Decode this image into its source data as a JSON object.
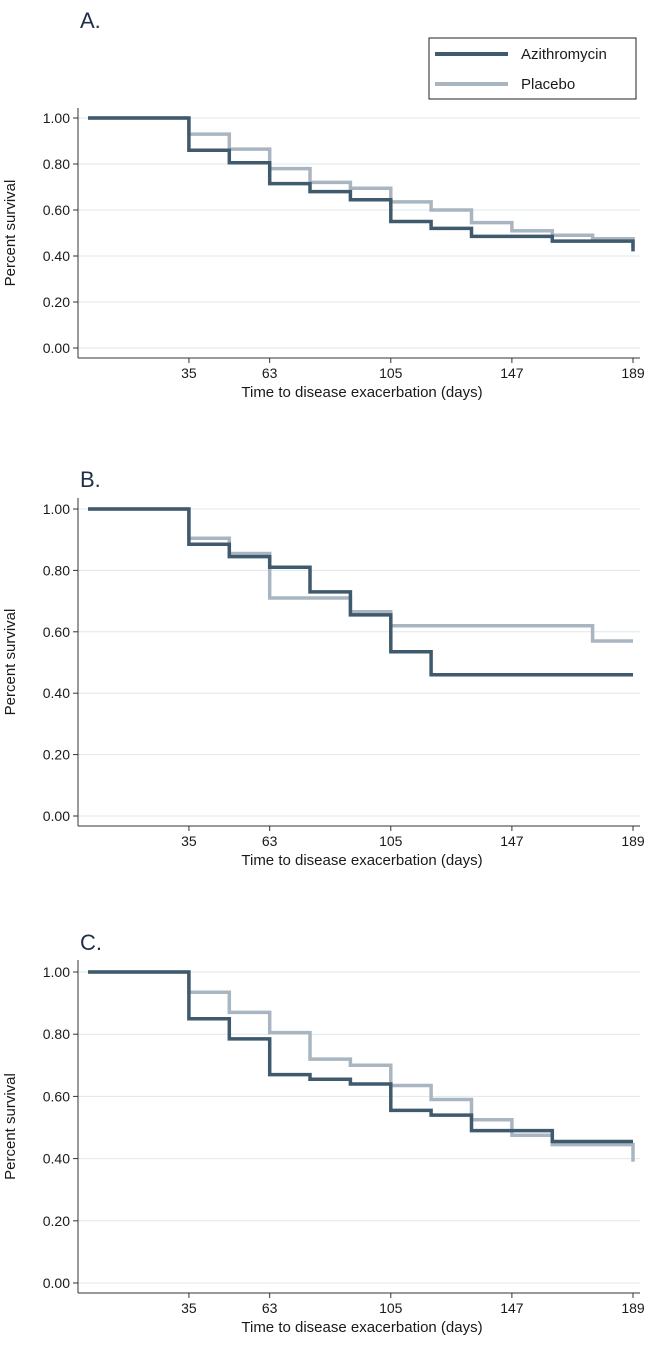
{
  "legend": {
    "entries": [
      {
        "label": "Azithromycin",
        "color": "#3f5a6d"
      },
      {
        "label": "Placebo",
        "color": "#a9b6c1"
      }
    ]
  },
  "colors": {
    "azithromycin": "#3f5a6d",
    "placebo": "#a9b6c1",
    "grid": "#dde7ea",
    "axis": "#333333"
  },
  "chart_data": [
    {
      "type": "line",
      "step": true,
      "panel_label": "A.",
      "xlabel": "Time to disease exacerbation (days)",
      "ylabel": "Percent survival",
      "x_ticks": [
        35,
        63,
        105,
        147,
        189
      ],
      "x_tick_labels": [
        "35",
        "63",
        "105",
        "147",
        "189"
      ],
      "y_ticks": [
        0,
        0.2,
        0.4,
        0.6,
        0.8,
        1.0
      ],
      "y_tick_labels": [
        "0.00",
        "0.20",
        "0.40",
        "0.60",
        "0.80",
        "1.00"
      ],
      "xlim": [
        0,
        189
      ],
      "ylim": [
        0,
        1
      ],
      "grid": true,
      "legend_position": "top-right",
      "series": [
        {
          "name": "Azithromycin",
          "x": [
            0,
            35,
            35,
            49,
            49,
            63,
            63,
            77,
            77,
            91,
            91,
            105,
            105,
            119,
            119,
            133,
            133,
            161,
            161,
            189,
            189
          ],
          "y": [
            1.0,
            1.0,
            0.86,
            0.86,
            0.805,
            0.805,
            0.715,
            0.715,
            0.68,
            0.68,
            0.645,
            0.645,
            0.55,
            0.55,
            0.52,
            0.52,
            0.485,
            0.485,
            0.465,
            0.465,
            0.42
          ]
        },
        {
          "name": "Placebo",
          "x": [
            0,
            35,
            35,
            49,
            49,
            63,
            63,
            77,
            77,
            91,
            91,
            105,
            105,
            119,
            119,
            133,
            133,
            147,
            147,
            161,
            161,
            175,
            175,
            189,
            189
          ],
          "y": [
            1.0,
            1.0,
            0.93,
            0.93,
            0.865,
            0.865,
            0.78,
            0.78,
            0.72,
            0.72,
            0.695,
            0.695,
            0.635,
            0.635,
            0.6,
            0.6,
            0.545,
            0.545,
            0.51,
            0.51,
            0.49,
            0.49,
            0.475,
            0.475,
            0.44
          ]
        }
      ]
    },
    {
      "type": "line",
      "step": true,
      "panel_label": "B.",
      "xlabel": "Time to disease exacerbation (days)",
      "ylabel": "Percent survival",
      "x_ticks": [
        35,
        63,
        105,
        147,
        189
      ],
      "x_tick_labels": [
        "35",
        "63",
        "105",
        "147",
        "189"
      ],
      "y_ticks": [
        0,
        0.2,
        0.4,
        0.6,
        0.8,
        1.0
      ],
      "y_tick_labels": [
        "0.00",
        "0.20",
        "0.40",
        "0.60",
        "0.80",
        "1.00"
      ],
      "xlim": [
        0,
        189
      ],
      "ylim": [
        0,
        1
      ],
      "grid": true,
      "series": [
        {
          "name": "Azithromycin",
          "x": [
            0,
            35,
            35,
            49,
            49,
            63,
            63,
            77,
            77,
            91,
            91,
            105,
            105,
            119,
            119,
            189
          ],
          "y": [
            1.0,
            1.0,
            0.885,
            0.885,
            0.845,
            0.845,
            0.81,
            0.81,
            0.73,
            0.73,
            0.655,
            0.655,
            0.535,
            0.535,
            0.46,
            0.46
          ]
        },
        {
          "name": "Placebo",
          "x": [
            0,
            35,
            35,
            49,
            49,
            63,
            63,
            91,
            91,
            105,
            105,
            175,
            175,
            189
          ],
          "y": [
            1.0,
            1.0,
            0.905,
            0.905,
            0.855,
            0.855,
            0.71,
            0.71,
            0.665,
            0.665,
            0.62,
            0.62,
            0.57,
            0.57
          ]
        }
      ]
    },
    {
      "type": "line",
      "step": true,
      "panel_label": "C.",
      "xlabel": "Time to disease exacerbation (days)",
      "ylabel": "Percent survival",
      "x_ticks": [
        35,
        63,
        105,
        147,
        189
      ],
      "x_tick_labels": [
        "35",
        "63",
        "105",
        "147",
        "189"
      ],
      "y_ticks": [
        0,
        0.2,
        0.4,
        0.6,
        0.8,
        1.0
      ],
      "y_tick_labels": [
        "0.00",
        "0.20",
        "0.40",
        "0.60",
        "0.80",
        "1.00"
      ],
      "xlim": [
        0,
        189
      ],
      "ylim": [
        0,
        1
      ],
      "grid": true,
      "series": [
        {
          "name": "Azithromycin",
          "x": [
            0,
            35,
            35,
            49,
            49,
            63,
            63,
            77,
            77,
            91,
            91,
            105,
            105,
            119,
            119,
            133,
            133,
            161,
            161,
            189
          ],
          "y": [
            1.0,
            1.0,
            0.85,
            0.85,
            0.785,
            0.785,
            0.67,
            0.67,
            0.655,
            0.655,
            0.64,
            0.64,
            0.555,
            0.555,
            0.54,
            0.54,
            0.49,
            0.49,
            0.455,
            0.455
          ]
        },
        {
          "name": "Placebo",
          "x": [
            0,
            35,
            35,
            49,
            49,
            63,
            63,
            77,
            77,
            91,
            91,
            105,
            105,
            119,
            119,
            133,
            133,
            147,
            147,
            161,
            161,
            189,
            189
          ],
          "y": [
            1.0,
            1.0,
            0.935,
            0.935,
            0.87,
            0.87,
            0.805,
            0.805,
            0.72,
            0.72,
            0.7,
            0.7,
            0.635,
            0.635,
            0.59,
            0.59,
            0.525,
            0.525,
            0.475,
            0.475,
            0.445,
            0.445,
            0.39
          ]
        }
      ]
    }
  ]
}
